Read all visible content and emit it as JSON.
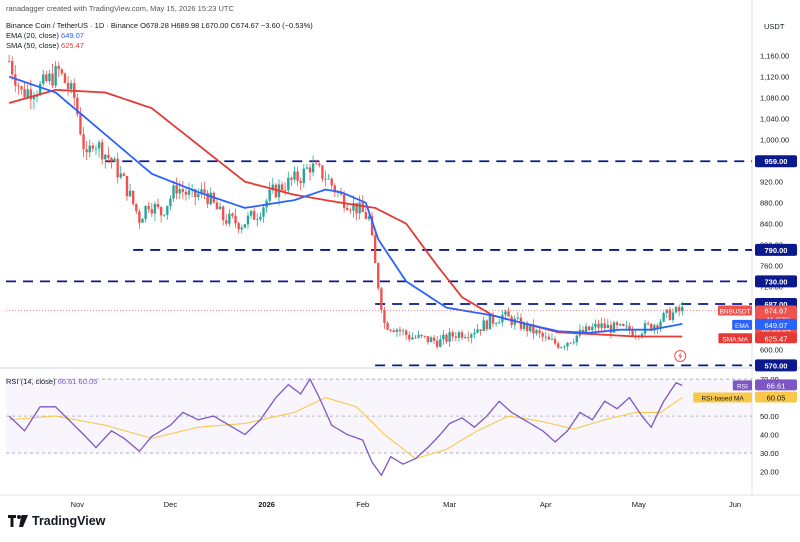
{
  "header": {
    "credit": "ranadagger created with TradingView.com, May 15, 2026 15:23 UTC",
    "symbol": "Binance Coin / TetherUS · 1D · Binance",
    "ohlc": "O678.28 H689.98 L670.00 C674.67 −3.60 (−0.53%)",
    "ema_label": "EMA (20, close)",
    "ema_value": "649.07",
    "sma_label": "SMA (50, close)",
    "sma_value": "625.47",
    "rsi_label": "RSI (14, close)",
    "rsi_values": "66.61  60.05",
    "currency": "USDT"
  },
  "brand": {
    "name": "TradingView"
  },
  "colors": {
    "up": "#26a69a",
    "down": "#ef5350",
    "ema": "#2962ff",
    "sma": "#e53935",
    "rsi": "#7e57c2",
    "rsi_ma": "#f9c84a",
    "level": "#0a1a8c"
  },
  "chart_data": [
    {
      "type": "candlestick",
      "title": "Binance Coin / TetherUS · 1D · Binance",
      "ylabel": "USDT",
      "ylim": [
        565,
        1190
      ],
      "y_scale": "linear",
      "y_ticks": [
        1160,
        1120,
        1080,
        1040,
        1000,
        960,
        920,
        880,
        840,
        800,
        760,
        720,
        680,
        640,
        600
      ],
      "x_ticks": [
        "Nov",
        "Dec",
        "2026",
        "Feb",
        "Mar",
        "Apr",
        "May",
        "Jun"
      ],
      "grid": false,
      "series": [
        {
          "name": "EMA (20, close)",
          "last": 649.07,
          "anchors": [
            [
              "Oct 10",
              1120
            ],
            [
              "Oct 25",
              1090
            ],
            [
              "Nov 10",
              1010
            ],
            [
              "Nov 25",
              935
            ],
            [
              "Dec 10",
              900
            ],
            [
              "Dec 25",
              870
            ],
            [
              "Jan 10",
              885
            ],
            [
              "Jan 20",
              905
            ],
            [
              "Jan 25",
              900
            ],
            [
              "Feb 2",
              880
            ],
            [
              "Feb 6",
              810
            ],
            [
              "Feb 15",
              730
            ],
            [
              "Feb 28",
              680
            ],
            [
              "Mar 15",
              665
            ],
            [
              "Mar 25",
              650
            ],
            [
              "Apr 5",
              635
            ],
            [
              "Apr 15",
              632
            ],
            [
              "Apr 25",
              638
            ],
            [
              "May 5",
              638
            ],
            [
              "May 15",
              649
            ]
          ]
        },
        {
          "name": "SMA (50, close)",
          "last": 625.47,
          "anchors": [
            [
              "Oct 10",
              1070
            ],
            [
              "Oct 25",
              1095
            ],
            [
              "Nov 10",
              1090
            ],
            [
              "Nov 25",
              1060
            ],
            [
              "Dec 10",
              990
            ],
            [
              "Dec 25",
              920
            ],
            [
              "Jan 10",
              895
            ],
            [
              "Jan 25",
              880
            ],
            [
              "Feb 5",
              870
            ],
            [
              "Feb 15",
              840
            ],
            [
              "Feb 25",
              760
            ],
            [
              "Mar 5",
              700
            ],
            [
              "Mar 15",
              665
            ],
            [
              "Mar 25",
              650
            ],
            [
              "Apr 5",
              633
            ],
            [
              "Apr 15",
              630
            ],
            [
              "Apr 30",
              625
            ],
            [
              "May 15",
              625
            ]
          ]
        }
      ],
      "price_path": [
        [
          "Oct 10",
          1150
        ],
        [
          "Oct 14",
          1090
        ],
        [
          "Oct 20",
          1100
        ],
        [
          "Oct 26",
          1130
        ],
        [
          "Oct 31",
          1080
        ],
        [
          "Nov 4",
          960
        ],
        [
          "Nov 6",
          1000
        ],
        [
          "Nov 12",
          960
        ],
        [
          "Nov 16",
          920
        ],
        [
          "Nov 21",
          850
        ],
        [
          "Nov 24",
          880
        ],
        [
          "Nov 28",
          860
        ],
        [
          "Dec 3",
          910
        ],
        [
          "Dec 8",
          890
        ],
        [
          "Dec 12",
          900
        ],
        [
          "Dec 18",
          850
        ],
        [
          "Dec 24",
          840
        ],
        [
          "Dec 29",
          860
        ],
        [
          "Jan 3",
          900
        ],
        [
          "Jan 7",
          915
        ],
        [
          "Jan 12",
          930
        ],
        [
          "Jan 15",
          950
        ],
        [
          "Jan 20",
          930
        ],
        [
          "Jan 25",
          890
        ],
        [
          "Jan 30",
          870
        ],
        [
          "Feb 3",
          850
        ],
        [
          "Feb 5",
          760
        ],
        [
          "Feb 8",
          650
        ],
        [
          "Feb 12",
          640
        ],
        [
          "Feb 16",
          625
        ],
        [
          "Feb 21",
          620
        ],
        [
          "Feb 26",
          615
        ],
        [
          "Mar 3",
          630
        ],
        [
          "Mar 8",
          635
        ],
        [
          "Mar 13",
          650
        ],
        [
          "Mar 18",
          665
        ],
        [
          "Mar 23",
          650
        ],
        [
          "Mar 28",
          635
        ],
        [
          "Apr 2",
          615
        ],
        [
          "Apr 6",
          610
        ],
        [
          "Apr 12",
          630
        ],
        [
          "Apr 18",
          645
        ],
        [
          "Apr 24",
          640
        ],
        [
          "Apr 30",
          635
        ],
        [
          "May 5",
          645
        ],
        [
          "May 10",
          665
        ],
        [
          "May 15",
          675
        ]
      ],
      "levels": [
        959,
        790,
        730,
        687,
        570
      ],
      "level_labels": [
        "959.00",
        "790.00",
        "730.00",
        "687.00",
        "570.00"
      ],
      "price_labels": [
        {
          "text": "BNBUSDT",
          "value": 674.67,
          "lines": [
            "674.67",
            "−41.07%",
            "08:36:54"
          ],
          "color": "#ef5350"
        },
        {
          "text": "EMA",
          "value": 649.07,
          "color": "#2962ff"
        },
        {
          "text": "SMA:MA",
          "value": 625.47,
          "color": "#e53935"
        }
      ]
    },
    {
      "type": "line",
      "title": "RSI (14, close)",
      "ylim": [
        10,
        76
      ],
      "y_ticks": [
        70,
        60,
        50,
        40,
        30,
        20
      ],
      "bands": [
        70,
        50,
        30
      ],
      "series": [
        {
          "name": "RSI",
          "last": 66.61,
          "anchors": [
            [
              "Oct 10",
              50
            ],
            [
              "Oct 15",
              42
            ],
            [
              "Oct 20",
              55
            ],
            [
              "Oct 25",
              55
            ],
            [
              "Oct 31",
              45
            ],
            [
              "Nov 3",
              40
            ],
            [
              "Nov 7",
              33
            ],
            [
              "Nov 12",
              42
            ],
            [
              "Nov 16",
              38
            ],
            [
              "Nov 21",
              31
            ],
            [
              "Nov 25",
              39
            ],
            [
              "Dec 1",
              45
            ],
            [
              "Dec 5",
              52
            ],
            [
              "Dec 10",
              48
            ],
            [
              "Dec 15",
              50
            ],
            [
              "Dec 20",
              45
            ],
            [
              "Dec 25",
              40
            ],
            [
              "Dec 30",
              48
            ],
            [
              "Jan 4",
              60
            ],
            [
              "Jan 8",
              67
            ],
            [
              "Jan 12",
              62
            ],
            [
              "Jan 15",
              70
            ],
            [
              "Jan 18",
              60
            ],
            [
              "Jan 22",
              45
            ],
            [
              "Jan 27",
              40
            ],
            [
              "Feb 1",
              37
            ],
            [
              "Feb 4",
              25
            ],
            [
              "Feb 7",
              18
            ],
            [
              "Feb 10",
              28
            ],
            [
              "Feb 14",
              24
            ],
            [
              "Feb 18",
              27
            ],
            [
              "Feb 22",
              33
            ],
            [
              "Feb 26",
              40
            ],
            [
              "Mar 1",
              46
            ],
            [
              "Mar 5",
              49
            ],
            [
              "Mar 9",
              44
            ],
            [
              "Mar 13",
              50
            ],
            [
              "Mar 17",
              58
            ],
            [
              "Mar 21",
              52
            ],
            [
              "Mar 26",
              47
            ],
            [
              "Mar 31",
              42
            ],
            [
              "Apr 4",
              36
            ],
            [
              "Apr 8",
              42
            ],
            [
              "Apr 12",
              52
            ],
            [
              "Apr 16",
              48
            ],
            [
              "Apr 20",
              58
            ],
            [
              "Apr 24",
              54
            ],
            [
              "Apr 28",
              60
            ],
            [
              "May 2",
              50
            ],
            [
              "May 5",
              44
            ],
            [
              "May 9",
              58
            ],
            [
              "May 13",
              68
            ],
            [
              "May 15",
              66.61
            ]
          ]
        },
        {
          "name": "RSI-based MA",
          "last": 60.05,
          "anchors": [
            [
              "Oct 10",
              48
            ],
            [
              "Oct 25",
              50
            ],
            [
              "Nov 10",
              45
            ],
            [
              "Nov 25",
              38
            ],
            [
              "Dec 10",
              44
            ],
            [
              "Dec 25",
              46
            ],
            [
              "Jan 10",
              52
            ],
            [
              "Jan 20",
              60
            ],
            [
              "Jan 30",
              55
            ],
            [
              "Feb 8",
              40
            ],
            [
              "Feb 18",
              27
            ],
            [
              "Feb 28",
              32
            ],
            [
              "Mar 10",
              42
            ],
            [
              "Mar 20",
              50
            ],
            [
              "Mar 31",
              47
            ],
            [
              "Apr 10",
              43
            ],
            [
              "Apr 20",
              48
            ],
            [
              "Apr 30",
              52
            ],
            [
              "May 8",
              52
            ],
            [
              "May 15",
              60
            ]
          ]
        }
      ],
      "price_labels": [
        {
          "text": "RSI",
          "value": 66.61,
          "color": "#7e57c2"
        },
        {
          "text": "RSI-based MA",
          "value": 60.05,
          "color": "#f9c84a"
        }
      ]
    }
  ]
}
